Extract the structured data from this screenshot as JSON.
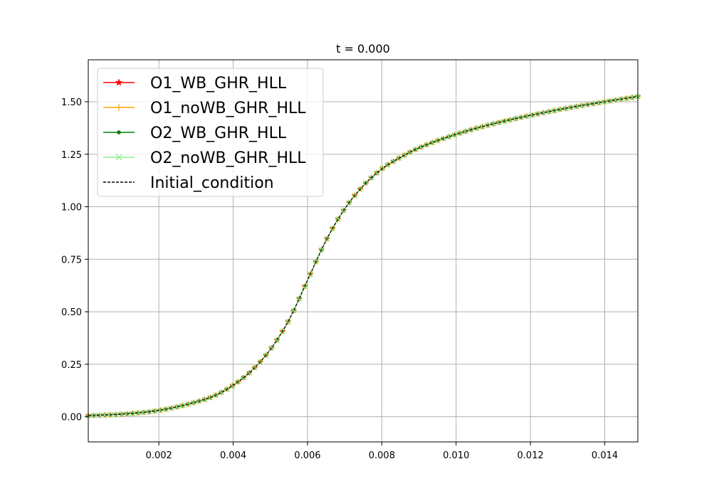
{
  "chart_data": {
    "type": "line",
    "title": "t = 0.000",
    "xlabel": "",
    "ylabel": "",
    "xlim": [
      0.0001,
      0.01489
    ],
    "ylim": [
      -0.12,
      1.7
    ],
    "xticks": [
      0.002,
      0.004,
      0.006,
      0.008,
      0.01,
      0.012,
      0.014
    ],
    "xtick_labels": [
      "0.002",
      "0.004",
      "0.006",
      "0.008",
      "0.010",
      "0.012",
      "0.014"
    ],
    "yticks": [
      0.0,
      0.25,
      0.5,
      0.75,
      1.0,
      1.25,
      1.5
    ],
    "ytick_labels": [
      "0.00",
      "0.25",
      "0.50",
      "0.75",
      "1.00",
      "1.25",
      "1.50"
    ],
    "grid": true,
    "legend_position": "top-left",
    "x": [
      0.0001,
      0.001,
      0.002,
      0.003,
      0.0035,
      0.004,
      0.0045,
      0.005,
      0.0055,
      0.006,
      0.0065,
      0.007,
      0.0075,
      0.008,
      0.0085,
      0.009,
      0.01,
      0.011,
      0.012,
      0.013,
      0.014,
      0.01489
    ],
    "curve": [
      0.005,
      0.012,
      0.03,
      0.07,
      0.1,
      0.15,
      0.22,
      0.32,
      0.46,
      0.65,
      0.84,
      0.99,
      1.1,
      1.18,
      1.235,
      1.28,
      1.345,
      1.395,
      1.435,
      1.47,
      1.5,
      1.525
    ],
    "series": [
      {
        "name": "O1_WB_GHR_HLL",
        "color": "#ff0000",
        "marker": "star",
        "style": "solid"
      },
      {
        "name": "O1_noWB_GHR_HLL",
        "color": "#ffa500",
        "marker": "plus",
        "style": "solid"
      },
      {
        "name": "O2_WB_GHR_HLL",
        "color": "#008000",
        "marker": "dot",
        "style": "solid"
      },
      {
        "name": "O2_noWB_GHR_HLL",
        "color": "#90ee90",
        "marker": "x",
        "style": "solid"
      },
      {
        "name": "Initial_condition",
        "color": "#000000",
        "marker": "none",
        "style": "dashed"
      }
    ]
  }
}
